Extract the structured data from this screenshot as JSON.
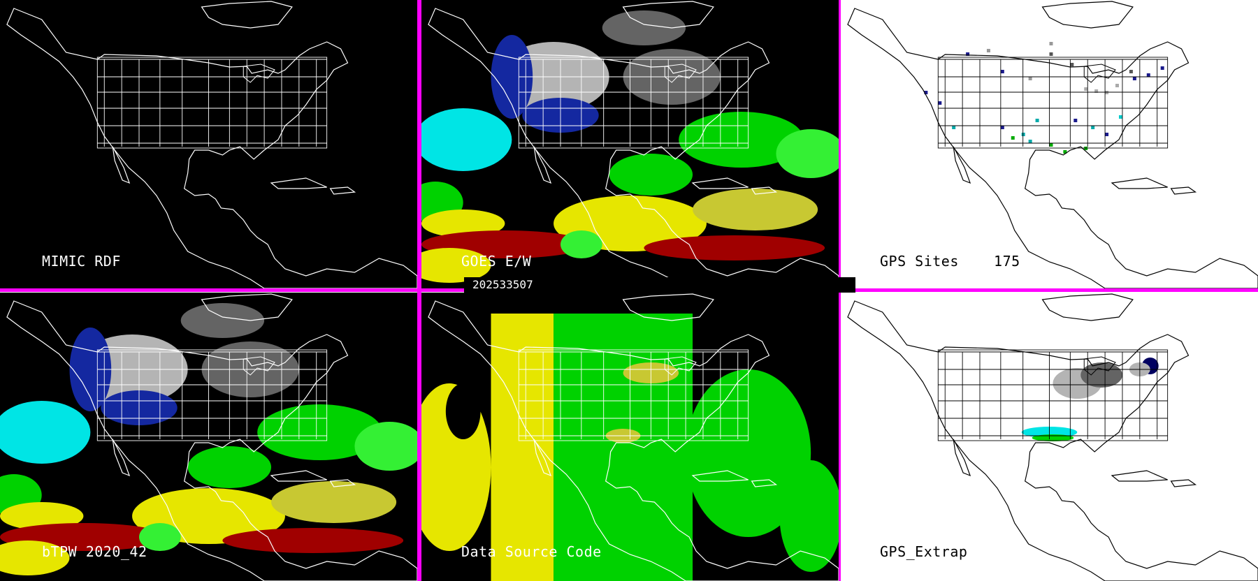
{
  "colors": {
    "divider": "#ff00ff",
    "land_outline_dark": "#ffffff",
    "land_outline_light": "#000000",
    "dry_deep": "#000060",
    "dry_blue": "#1428a0",
    "cyan": "#00e5e5",
    "green": "#00d200",
    "light_green": "#34f034",
    "yellow": "#e6e600",
    "olive_yellow": "#c8c832",
    "dark_red": "#a00000",
    "gray": "#b4b4b4",
    "light_gray": "#dcdcdc",
    "dark_gray": "#646464"
  },
  "timestamp": "202533507",
  "panels": [
    {
      "id": "mimic",
      "label": "MIMIC RDF",
      "background": "black",
      "fields": "none"
    },
    {
      "id": "goes",
      "label": "GOES E/W",
      "background": "black",
      "fields": "tpw"
    },
    {
      "id": "gps_sites",
      "label": "GPS Sites    175",
      "background": "white",
      "fields": "sites"
    },
    {
      "id": "btpw",
      "label": "bTPW 2020_42",
      "background": "black",
      "fields": "tpw"
    },
    {
      "id": "source_code",
      "label": "Data Source Code",
      "background": "black",
      "fields": "source"
    },
    {
      "id": "gps_extrap",
      "label": "GPS_Extrap",
      "background": "white",
      "fields": "extrap"
    }
  ]
}
